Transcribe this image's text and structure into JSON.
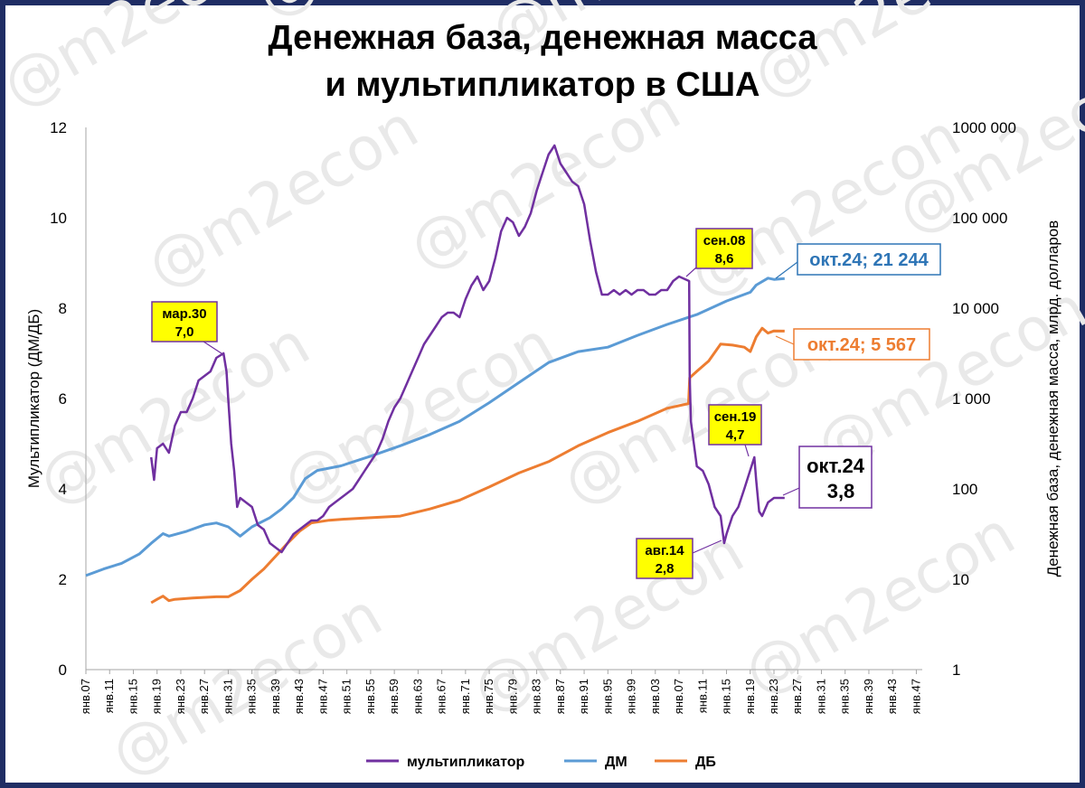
{
  "chart_data": {
    "type": "line",
    "title_lines": [
      "Денежная база, денежная масса",
      "и мультипликатор в США"
    ],
    "watermark": "@m2econ",
    "y_left": {
      "label": "Мультипликатор (ДМ/ДБ)",
      "min": 0,
      "max": 12,
      "ticks": [
        "0",
        "2",
        "4",
        "6",
        "8",
        "10",
        "12"
      ]
    },
    "y_right": {
      "label": "Денежная база, денежная масса, млрд. долларов",
      "scale": "log",
      "min": 1,
      "max": 1000000,
      "ticks": [
        "1",
        "10",
        "100",
        "1 000",
        "10 000",
        "100 000",
        "1000 000"
      ]
    },
    "x": {
      "min": 1907,
      "max": 2048,
      "ticks": [
        "янв.07",
        "янв.11",
        "янв.15",
        "янв.19",
        "янв.23",
        "янв.27",
        "янв.31",
        "янв.35",
        "янв.39",
        "янв.43",
        "янв.47",
        "янв.51",
        "янв.55",
        "янв.59",
        "янв.63",
        "янв.67",
        "янв.71",
        "янв.75",
        "янв.79",
        "янв.83",
        "янв.87",
        "янв.91",
        "янв.95",
        "янв.99",
        "янв.03",
        "янв.07",
        "янв.11",
        "янв.15",
        "янв.19",
        "янв.23",
        "янв.27",
        "янв.31",
        "янв.35",
        "янв.39",
        "янв.43",
        "янв.47"
      ]
    },
    "legend": [
      "мультипликатор",
      "ДМ",
      "ДБ"
    ],
    "colors": {
      "multiplier": "#7030a0",
      "dm": "#5b9bd5",
      "db": "#ed7d31",
      "callout_fill": "#ffff00"
    },
    "series": [
      {
        "name": "мультипликатор",
        "axis": "left",
        "points": [
          [
            1918,
            4.7
          ],
          [
            1918.5,
            4.2
          ],
          [
            1919,
            4.9
          ],
          [
            1920,
            5.0
          ],
          [
            1921,
            4.8
          ],
          [
            1922,
            5.4
          ],
          [
            1923,
            5.7
          ],
          [
            1924,
            5.7
          ],
          [
            1925,
            6.0
          ],
          [
            1926,
            6.4
          ],
          [
            1927,
            6.5
          ],
          [
            1928,
            6.6
          ],
          [
            1929,
            6.9
          ],
          [
            1930.2,
            7.0
          ],
          [
            1930.7,
            6.6
          ],
          [
            1931,
            6.0
          ],
          [
            1931.5,
            5.0
          ],
          [
            1932,
            4.4
          ],
          [
            1932.5,
            3.6
          ],
          [
            1933,
            3.8
          ],
          [
            1934,
            3.7
          ],
          [
            1935,
            3.6
          ],
          [
            1936,
            3.2
          ],
          [
            1937,
            3.1
          ],
          [
            1938,
            2.8
          ],
          [
            1939,
            2.7
          ],
          [
            1940,
            2.6
          ],
          [
            1941,
            2.8
          ],
          [
            1942,
            3.0
          ],
          [
            1943,
            3.1
          ],
          [
            1944,
            3.2
          ],
          [
            1945,
            3.3
          ],
          [
            1946,
            3.3
          ],
          [
            1947,
            3.4
          ],
          [
            1948,
            3.6
          ],
          [
            1949,
            3.7
          ],
          [
            1950,
            3.8
          ],
          [
            1951,
            3.9
          ],
          [
            1952,
            4.0
          ],
          [
            1953,
            4.2
          ],
          [
            1954,
            4.4
          ],
          [
            1955,
            4.6
          ],
          [
            1956,
            4.8
          ],
          [
            1957,
            5.1
          ],
          [
            1958,
            5.5
          ],
          [
            1959,
            5.8
          ],
          [
            1960,
            6.0
          ],
          [
            1961,
            6.3
          ],
          [
            1962,
            6.6
          ],
          [
            1963,
            6.9
          ],
          [
            1964,
            7.2
          ],
          [
            1965,
            7.4
          ],
          [
            1966,
            7.6
          ],
          [
            1967,
            7.8
          ],
          [
            1968,
            7.9
          ],
          [
            1969,
            7.9
          ],
          [
            1970,
            7.8
          ],
          [
            1971,
            8.2
          ],
          [
            1972,
            8.5
          ],
          [
            1973,
            8.7
          ],
          [
            1974,
            8.4
          ],
          [
            1975,
            8.6
          ],
          [
            1976,
            9.1
          ],
          [
            1977,
            9.7
          ],
          [
            1978,
            10.0
          ],
          [
            1979,
            9.9
          ],
          [
            1980,
            9.6
          ],
          [
            1981,
            9.8
          ],
          [
            1982,
            10.1
          ],
          [
            1983,
            10.6
          ],
          [
            1984,
            11.0
          ],
          [
            1985,
            11.4
          ],
          [
            1986,
            11.6
          ],
          [
            1987,
            11.2
          ],
          [
            1988,
            11.0
          ],
          [
            1989,
            10.8
          ],
          [
            1990,
            10.7
          ],
          [
            1991,
            10.3
          ],
          [
            1992,
            9.5
          ],
          [
            1993,
            8.8
          ],
          [
            1994,
            8.3
          ],
          [
            1995,
            8.3
          ],
          [
            1996,
            8.4
          ],
          [
            1997,
            8.3
          ],
          [
            1998,
            8.4
          ],
          [
            1999,
            8.3
          ],
          [
            2000,
            8.4
          ],
          [
            2001,
            8.4
          ],
          [
            2002,
            8.3
          ],
          [
            2003,
            8.3
          ],
          [
            2004,
            8.4
          ],
          [
            2005,
            8.4
          ],
          [
            2006,
            8.6
          ],
          [
            2007,
            8.7
          ],
          [
            2008.7,
            8.6
          ],
          [
            2008.8,
            6.5
          ],
          [
            2009,
            5.5
          ],
          [
            2009.5,
            5.0
          ],
          [
            2010,
            4.5
          ],
          [
            2011,
            4.4
          ],
          [
            2012,
            4.1
          ],
          [
            2013,
            3.6
          ],
          [
            2014,
            3.4
          ],
          [
            2014.6,
            2.8
          ],
          [
            2015,
            3.0
          ],
          [
            2016,
            3.4
          ],
          [
            2017,
            3.6
          ],
          [
            2018,
            4.0
          ],
          [
            2019.7,
            4.7
          ],
          [
            2020,
            4.2
          ],
          [
            2020.5,
            3.5
          ],
          [
            2021,
            3.4
          ],
          [
            2022,
            3.7
          ],
          [
            2023,
            3.8
          ],
          [
            2024.8,
            3.8
          ]
        ]
      },
      {
        "name": "ДМ",
        "axis": "right",
        "points": [
          [
            1907,
            11
          ],
          [
            1910,
            13
          ],
          [
            1913,
            15
          ],
          [
            1916,
            19
          ],
          [
            1918,
            25
          ],
          [
            1920,
            32
          ],
          [
            1921,
            30
          ],
          [
            1924,
            34
          ],
          [
            1927,
            40
          ],
          [
            1929,
            42
          ],
          [
            1931,
            38
          ],
          [
            1933,
            30
          ],
          [
            1935,
            38
          ],
          [
            1938,
            48
          ],
          [
            1940,
            60
          ],
          [
            1942,
            80
          ],
          [
            1944,
            130
          ],
          [
            1946,
            160
          ],
          [
            1950,
            180
          ],
          [
            1955,
            230
          ],
          [
            1960,
            300
          ],
          [
            1965,
            400
          ],
          [
            1970,
            560
          ],
          [
            1975,
            900
          ],
          [
            1980,
            1500
          ],
          [
            1985,
            2500
          ],
          [
            1990,
            3300
          ],
          [
            1995,
            3700
          ],
          [
            2000,
            5000
          ],
          [
            2005,
            6600
          ],
          [
            2008,
            7700
          ],
          [
            2010,
            8500
          ],
          [
            2015,
            12000
          ],
          [
            2019,
            15000
          ],
          [
            2020,
            18000
          ],
          [
            2022,
            21500
          ],
          [
            2023,
            20800
          ],
          [
            2024.8,
            21244
          ]
        ]
      },
      {
        "name": "ДБ",
        "axis": "right",
        "points": [
          [
            1918,
            5.5
          ],
          [
            1919,
            6.0
          ],
          [
            1920,
            6.5
          ],
          [
            1921,
            5.8
          ],
          [
            1922,
            6.0
          ],
          [
            1925,
            6.2
          ],
          [
            1929,
            6.4
          ],
          [
            1931,
            6.4
          ],
          [
            1933,
            7.5
          ],
          [
            1935,
            10
          ],
          [
            1937,
            13
          ],
          [
            1939,
            18
          ],
          [
            1941,
            25
          ],
          [
            1943,
            34
          ],
          [
            1945,
            42
          ],
          [
            1948,
            45
          ],
          [
            1950,
            46
          ],
          [
            1955,
            48
          ],
          [
            1960,
            50
          ],
          [
            1965,
            60
          ],
          [
            1970,
            75
          ],
          [
            1975,
            105
          ],
          [
            1980,
            150
          ],
          [
            1985,
            200
          ],
          [
            1990,
            300
          ],
          [
            1995,
            420
          ],
          [
            2000,
            560
          ],
          [
            2005,
            780
          ],
          [
            2008.6,
            880
          ],
          [
            2008.8,
            1700
          ],
          [
            2010,
            2000
          ],
          [
            2012,
            2600
          ],
          [
            2014,
            4000
          ],
          [
            2016,
            3900
          ],
          [
            2018,
            3700
          ],
          [
            2019,
            3300
          ],
          [
            2020,
            4800
          ],
          [
            2021,
            6000
          ],
          [
            2022,
            5300
          ],
          [
            2023,
            5600
          ],
          [
            2024.8,
            5567
          ]
        ]
      }
    ],
    "callouts": [
      {
        "id": "mar30",
        "line1": "мар.30",
        "line2": "7,0"
      },
      {
        "id": "sep08",
        "line1": "сен.08",
        "line2": "8,6"
      },
      {
        "id": "sep19",
        "line1": "сен.19",
        "line2": "4,7"
      },
      {
        "id": "aug14",
        "line1": "авг.14",
        "line2": "2,8"
      }
    ],
    "end_labels": {
      "dm": "окт.24; 21 244",
      "db": "окт.24; 5 567",
      "multiplier_date": "окт.24",
      "multiplier_value": "3,8"
    }
  }
}
